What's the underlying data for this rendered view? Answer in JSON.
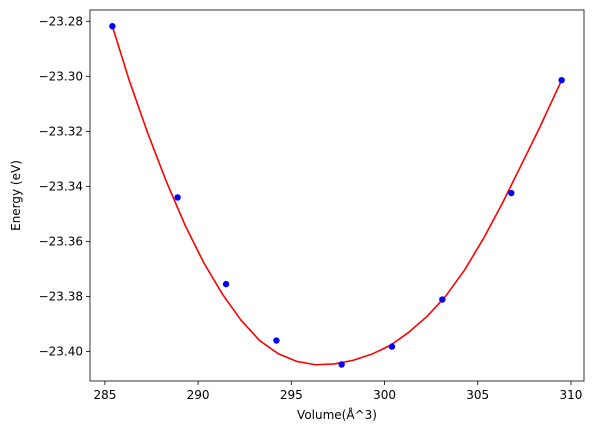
{
  "chart_data": {
    "type": "line",
    "title": "",
    "xlabel": "Volume(Å^3)",
    "ylabel": "Energy (eV)",
    "xlim": [
      284.2,
      310.7
    ],
    "ylim": [
      -23.4107,
      -23.2759
    ],
    "x_ticks": [
      285,
      290,
      295,
      300,
      305,
      310
    ],
    "x_tick_labels": [
      "285",
      "290",
      "295",
      "300",
      "305",
      "310"
    ],
    "y_ticks": [
      -23.28,
      -23.3,
      -23.32,
      -23.34,
      -23.36,
      -23.38,
      -23.4
    ],
    "y_tick_labels": [
      "−23.28",
      "−23.30",
      "−23.32",
      "−23.34",
      "−23.36",
      "−23.38",
      "−23.40"
    ],
    "grid": false,
    "legend": "none",
    "series": [
      {
        "kind": "points",
        "color": "#0000ff",
        "marker": "circle",
        "x": [
          285.4,
          288.9,
          291.5,
          294.2,
          297.7,
          300.4,
          303.1,
          306.8,
          309.5
        ],
        "y": [
          -23.2818,
          -23.344,
          -23.3755,
          -23.396,
          -23.4047,
          -23.3982,
          -23.3811,
          -23.3424,
          -23.3014
        ]
      },
      {
        "kind": "fit-curve",
        "color": "#ff0000",
        "x": [
          285.4,
          286.3,
          287.3,
          288.3,
          289.3,
          290.3,
          291.3,
          292.3,
          293.3,
          294.3,
          295.3,
          296.3,
          297.3,
          298.3,
          299.3,
          300.3,
          301.3,
          302.3,
          303.3,
          304.3,
          305.3,
          306.3,
          307.3,
          308.3,
          309.5
        ],
        "y": [
          -23.2818,
          -23.3014,
          -23.3207,
          -23.3383,
          -23.3541,
          -23.3677,
          -23.3791,
          -23.3886,
          -23.396,
          -23.4008,
          -23.4036,
          -23.4048,
          -23.4045,
          -23.4032,
          -23.401,
          -23.3978,
          -23.393,
          -23.3871,
          -23.3797,
          -23.3703,
          -23.359,
          -23.3464,
          -23.3327,
          -23.3189,
          -23.3014
        ]
      }
    ]
  }
}
